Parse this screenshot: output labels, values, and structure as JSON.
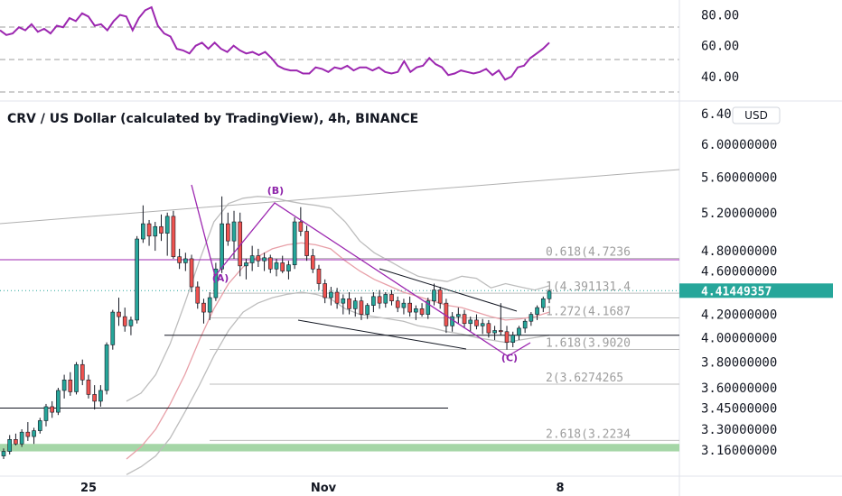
{
  "chart_data": [
    {
      "type": "line",
      "title": "",
      "ylim": [
        30,
        85
      ],
      "y_ticks": [
        "80.00",
        "60.00",
        "40.00"
      ],
      "guide_levels": [
        70,
        50,
        30
      ],
      "series": [
        {
          "values": [
            70,
            67,
            68,
            72,
            70,
            74,
            69,
            71,
            68,
            73,
            72,
            78,
            76,
            81,
            79,
            73,
            74,
            70,
            76,
            80,
            79,
            70,
            78,
            83,
            85,
            73,
            68,
            66,
            58,
            57,
            55,
            60,
            62,
            58,
            62,
            58,
            56,
            60,
            57,
            55,
            56,
            54,
            56,
            52,
            47,
            45,
            44,
            44,
            42,
            42,
            46,
            45,
            43,
            46,
            45,
            47,
            44,
            46,
            46,
            44,
            46,
            43,
            42,
            43,
            50,
            43,
            46,
            47,
            52,
            48,
            46,
            41,
            42,
            44,
            43,
            42,
            43,
            45,
            41,
            44,
            38,
            40,
            46,
            47,
            52,
            55,
            58,
            62
          ]
        }
      ],
      "color": "#9c27b0"
    },
    {
      "type": "candlestick",
      "title": "CRV / US Dollar (calculated by TradingView), 4h, BINANCE",
      "currency": "USD",
      "ylim": [
        3.1,
        6.45
      ],
      "y_scale": "log",
      "y_ticks": [
        "6.40000000",
        "6.00000000",
        "5.60000000",
        "5.20000000",
        "4.80000000",
        "4.60000000",
        "4.20000000",
        "4.00000000",
        "3.80000000",
        "3.60000000",
        "3.45000000",
        "3.30000000",
        "3.16000000"
      ],
      "y_tick_values": [
        6.4,
        6.0,
        5.6,
        5.2,
        4.8,
        4.6,
        4.2,
        4.0,
        3.8,
        3.6,
        3.45,
        3.3,
        3.16
      ],
      "x_ticks": [
        "25",
        "Nov",
        "8"
      ],
      "last_price": "4.41449357",
      "fib_labels": [
        "0.618(4.7236",
        "1(4.391131.4",
        "1.272(4.1687",
        "1.618(3.9020",
        "2(3.6274265",
        "2.618(3.2234"
      ],
      "fib_values": [
        4.7236,
        4.3911,
        4.1687,
        3.902,
        3.6274,
        3.2234
      ],
      "wave_labels": [
        "(B)",
        "(A)",
        "(C)"
      ],
      "wave_values": [
        5.35,
        4.5,
        3.82
      ],
      "horizontal_levels": [
        4.71,
        4.02,
        3.45
      ],
      "support_zone": [
        3.15,
        3.2
      ],
      "colors": {
        "up": "#26a69a",
        "down": "#ef5350",
        "wave": "#9c27b0",
        "bollinger": "#bdbdbd",
        "ma": "#e8a0a8",
        "fib": "#bdbdbd",
        "zone": "#a5d6a7",
        "badge": "#26a69a"
      },
      "ohlc": [
        [
          3.12,
          3.17,
          3.1,
          3.15
        ],
        [
          3.15,
          3.26,
          3.13,
          3.23
        ],
        [
          3.23,
          3.27,
          3.19,
          3.2
        ],
        [
          3.2,
          3.3,
          3.18,
          3.28
        ],
        [
          3.28,
          3.35,
          3.22,
          3.25
        ],
        [
          3.25,
          3.31,
          3.2,
          3.29
        ],
        [
          3.29,
          3.38,
          3.27,
          3.36
        ],
        [
          3.36,
          3.48,
          3.32,
          3.46
        ],
        [
          3.46,
          3.5,
          3.38,
          3.42
        ],
        [
          3.42,
          3.6,
          3.4,
          3.58
        ],
        [
          3.58,
          3.7,
          3.52,
          3.66
        ],
        [
          3.66,
          3.72,
          3.54,
          3.57
        ],
        [
          3.57,
          3.8,
          3.55,
          3.78
        ],
        [
          3.78,
          3.82,
          3.62,
          3.66
        ],
        [
          3.66,
          3.7,
          3.52,
          3.55
        ],
        [
          3.55,
          3.62,
          3.44,
          3.5
        ],
        [
          3.5,
          3.62,
          3.46,
          3.58
        ],
        [
          3.58,
          3.96,
          3.55,
          3.94
        ],
        [
          3.94,
          4.24,
          3.9,
          4.22
        ],
        [
          4.22,
          4.35,
          4.1,
          4.18
        ],
        [
          4.18,
          4.26,
          4.05,
          4.1
        ],
        [
          4.1,
          4.18,
          4.02,
          4.15
        ],
        [
          4.15,
          4.95,
          4.12,
          4.92
        ],
        [
          4.92,
          5.28,
          4.88,
          5.08
        ],
        [
          5.08,
          5.12,
          4.85,
          4.95
        ],
        [
          4.95,
          5.1,
          4.8,
          5.05
        ],
        [
          5.05,
          5.18,
          4.9,
          4.98
        ],
        [
          4.98,
          5.2,
          4.75,
          5.16
        ],
        [
          5.16,
          5.22,
          4.72,
          4.74
        ],
        [
          4.74,
          4.82,
          4.62,
          4.68
        ],
        [
          4.68,
          4.78,
          4.6,
          4.72
        ],
        [
          4.72,
          4.76,
          4.4,
          4.45
        ],
        [
          4.45,
          4.5,
          4.25,
          4.3
        ],
        [
          4.3,
          4.34,
          4.12,
          4.22
        ],
        [
          4.22,
          4.4,
          4.15,
          4.35
        ],
        [
          4.35,
          4.68,
          4.32,
          4.62
        ],
        [
          4.62,
          5.38,
          4.58,
          5.08
        ],
        [
          5.08,
          5.2,
          4.85,
          4.9
        ],
        [
          4.9,
          5.22,
          4.72,
          5.1
        ],
        [
          5.1,
          5.2,
          4.55,
          4.65
        ],
        [
          4.65,
          4.72,
          4.52,
          4.68
        ],
        [
          4.68,
          4.85,
          4.6,
          4.75
        ],
        [
          4.75,
          4.82,
          4.64,
          4.7
        ],
        [
          4.7,
          4.78,
          4.6,
          4.73
        ],
        [
          4.73,
          4.76,
          4.58,
          4.62
        ],
        [
          4.62,
          4.72,
          4.55,
          4.68
        ],
        [
          4.68,
          4.75,
          4.58,
          4.6
        ],
        [
          4.6,
          4.7,
          4.52,
          4.66
        ],
        [
          4.66,
          5.15,
          4.62,
          5.1
        ],
        [
          5.1,
          5.26,
          4.95,
          5.0
        ],
        [
          5.0,
          5.06,
          4.7,
          4.75
        ],
        [
          4.75,
          4.82,
          4.58,
          4.62
        ],
        [
          4.62,
          4.66,
          4.42,
          4.48
        ],
        [
          4.48,
          4.52,
          4.3,
          4.35
        ],
        [
          4.35,
          4.45,
          4.28,
          4.4
        ],
        [
          4.4,
          4.44,
          4.25,
          4.3
        ],
        [
          4.3,
          4.38,
          4.2,
          4.34
        ],
        [
          4.34,
          4.4,
          4.2,
          4.25
        ],
        [
          4.25,
          4.35,
          4.18,
          4.32
        ],
        [
          4.32,
          4.36,
          4.15,
          4.2
        ],
        [
          4.2,
          4.3,
          4.16,
          4.28
        ],
        [
          4.28,
          4.4,
          4.22,
          4.36
        ],
        [
          4.36,
          4.42,
          4.25,
          4.3
        ],
        [
          4.3,
          4.4,
          4.26,
          4.38
        ],
        [
          4.38,
          4.42,
          4.28,
          4.32
        ],
        [
          4.32,
          4.36,
          4.22,
          4.26
        ],
        [
          4.26,
          4.34,
          4.2,
          4.3
        ],
        [
          4.3,
          4.36,
          4.18,
          4.22
        ],
        [
          4.22,
          4.28,
          4.15,
          4.25
        ],
        [
          4.25,
          4.3,
          4.18,
          4.2
        ],
        [
          4.2,
          4.35,
          4.16,
          4.32
        ],
        [
          4.32,
          4.48,
          4.28,
          4.42
        ],
        [
          4.42,
          4.45,
          4.25,
          4.3
        ],
        [
          4.3,
          4.34,
          4.04,
          4.1
        ],
        [
          4.1,
          4.22,
          4.05,
          4.18
        ],
        [
          4.18,
          4.26,
          4.12,
          4.2
        ],
        [
          4.2,
          4.24,
          4.08,
          4.12
        ],
        [
          4.12,
          4.18,
          4.05,
          4.15
        ],
        [
          4.15,
          4.2,
          4.07,
          4.1
        ],
        [
          4.1,
          4.16,
          4.03,
          4.12
        ],
        [
          4.12,
          4.15,
          4.0,
          4.04
        ],
        [
          4.04,
          4.1,
          3.98,
          4.06
        ],
        [
          4.06,
          4.3,
          4.02,
          4.05
        ],
        [
          4.05,
          4.1,
          3.9,
          3.96
        ],
        [
          3.96,
          4.05,
          3.92,
          4.02
        ],
        [
          4.02,
          4.1,
          3.98,
          4.08
        ],
        [
          4.08,
          4.16,
          4.04,
          4.14
        ],
        [
          4.14,
          4.22,
          4.1,
          4.2
        ],
        [
          4.2,
          4.28,
          4.15,
          4.26
        ],
        [
          4.26,
          4.36,
          4.22,
          4.34
        ],
        [
          4.34,
          4.42,
          4.3,
          4.41
        ]
      ],
      "bollinger": {
        "upper": [
          3.5,
          3.56,
          3.7,
          3.95,
          4.3,
          4.7,
          5.1,
          5.3,
          5.36,
          5.38,
          5.37,
          5.33,
          5.3,
          5.28,
          5.25,
          5.1,
          4.9,
          4.78,
          4.7,
          4.62,
          4.55,
          4.52,
          4.5,
          4.55,
          4.53,
          4.44,
          4.48,
          4.45,
          4.42,
          4.46
        ],
        "lower": [
          3.0,
          3.05,
          3.12,
          3.24,
          3.42,
          3.62,
          3.85,
          4.06,
          4.22,
          4.3,
          4.35,
          4.38,
          4.4,
          4.38,
          4.34,
          4.25,
          4.2,
          4.18,
          4.16,
          4.14,
          4.1,
          4.08,
          4.05,
          4.03,
          4.0,
          3.98,
          3.96,
          3.98,
          4.0,
          4.02
        ],
        "ma": [
          3.1,
          3.18,
          3.3,
          3.48,
          3.7,
          3.98,
          4.25,
          4.48,
          4.64,
          4.74,
          4.82,
          4.86,
          4.88,
          4.86,
          4.82,
          4.7,
          4.6,
          4.52,
          4.46,
          4.4,
          4.36,
          4.32,
          4.28,
          4.26,
          4.22,
          4.18,
          4.15,
          4.16,
          4.18,
          4.22
        ]
      }
    }
  ]
}
